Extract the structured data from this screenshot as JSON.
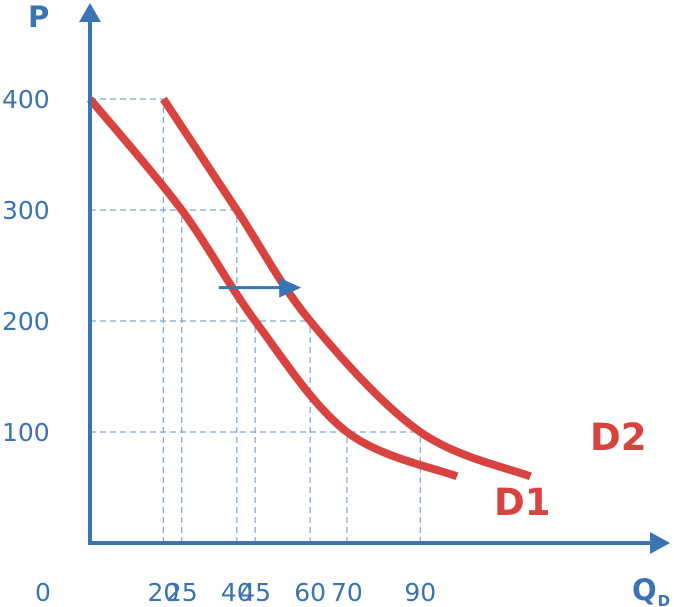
{
  "chart_data": {
    "type": "line",
    "y_axis_label": "P",
    "x_axis_label": {
      "main": "Q",
      "subscript": "D"
    },
    "origin_label": "0",
    "y_ticks": [
      "400",
      "300",
      "200",
      "100"
    ],
    "x_ticks": [
      "20",
      "25",
      "40",
      "45",
      "60",
      "70",
      "90"
    ],
    "series": [
      {
        "name": "D1",
        "color": "#d9433f",
        "points": [
          [
            0,
            400
          ],
          [
            25,
            300
          ],
          [
            45,
            200
          ],
          [
            70,
            100
          ],
          [
            100,
            60
          ]
        ]
      },
      {
        "name": "D2",
        "color": "#d9433f",
        "points": [
          [
            20,
            400
          ],
          [
            40,
            300
          ],
          [
            60,
            200
          ],
          [
            90,
            100
          ],
          [
            120,
            60
          ]
        ]
      }
    ],
    "shift_arrow": {
      "from": [
        40,
        240
      ],
      "to": [
        57,
        240
      ],
      "color": "#3a74b3"
    },
    "guides": [
      {
        "kind": "h",
        "y": 400,
        "x_to": 20
      },
      {
        "kind": "h",
        "y": 300,
        "x_to": 40
      },
      {
        "kind": "h",
        "y": 200,
        "x_to": 60
      },
      {
        "kind": "h",
        "y": 100,
        "x_to": 90
      },
      {
        "kind": "v",
        "x": 20,
        "y_to": 400
      },
      {
        "kind": "v",
        "x": 25,
        "y_to": 300
      },
      {
        "kind": "v",
        "x": 40,
        "y_to": 300
      },
      {
        "kind": "v",
        "x": 45,
        "y_to": 200
      },
      {
        "kind": "v",
        "x": 60,
        "y_to": 200
      },
      {
        "kind": "v",
        "x": 70,
        "y_to": 100
      },
      {
        "kind": "v",
        "x": 90,
        "y_to": 100
      }
    ],
    "grid": false,
    "axis_color": "#3a74b3"
  }
}
